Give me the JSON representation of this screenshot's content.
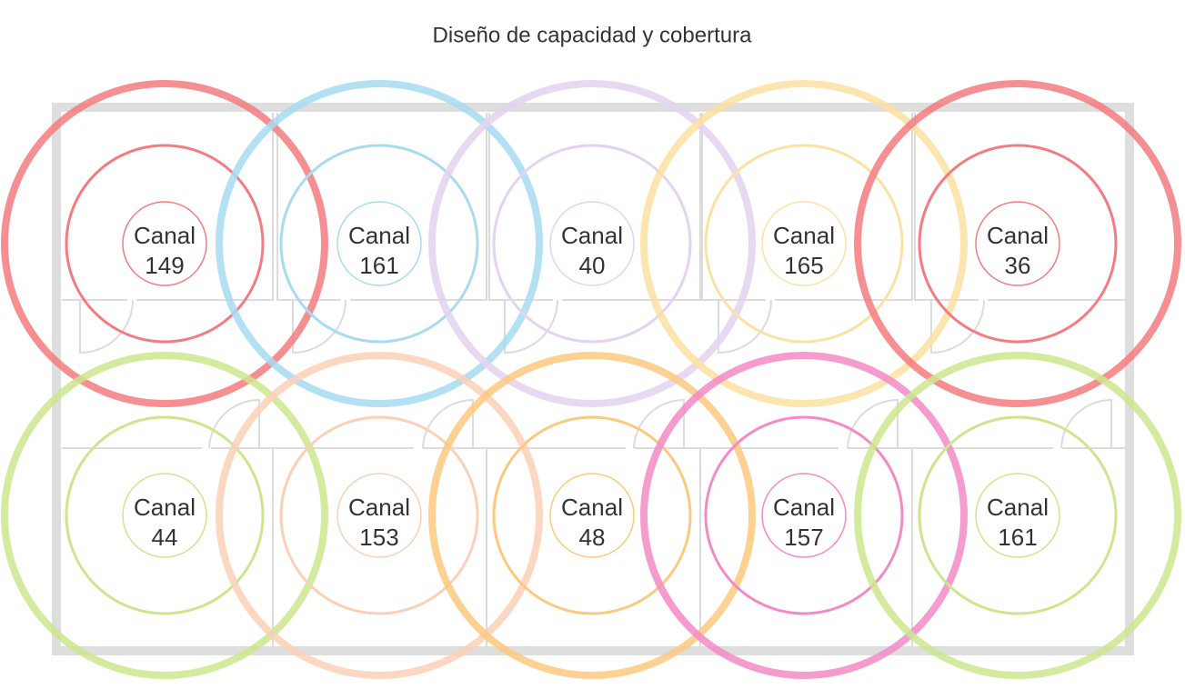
{
  "title": "Diseño de capacidad y cobertura",
  "cells": [
    {
      "label": "Canal",
      "channel": 149,
      "color": "#f47b7f"
    },
    {
      "label": "Canal",
      "channel": 161,
      "color": "#a7dbf1"
    },
    {
      "label": "Canal",
      "channel": 40,
      "color": "#e4d2f1"
    },
    {
      "label": "Canal",
      "channel": 165,
      "color": "#fde1a1"
    },
    {
      "label": "Canal",
      "channel": 36,
      "color": "#f47b7f"
    },
    {
      "label": "Canal",
      "channel": 44,
      "color": "#cde68e"
    },
    {
      "label": "Canal",
      "channel": 153,
      "color": "#fcd0b7"
    },
    {
      "label": "Canal",
      "channel": 48,
      "color": "#fdc97e"
    },
    {
      "label": "Canal",
      "channel": 157,
      "color": "#f38ac6"
    },
    {
      "label": "Canal",
      "channel": 161,
      "color": "#cde68e"
    }
  ]
}
